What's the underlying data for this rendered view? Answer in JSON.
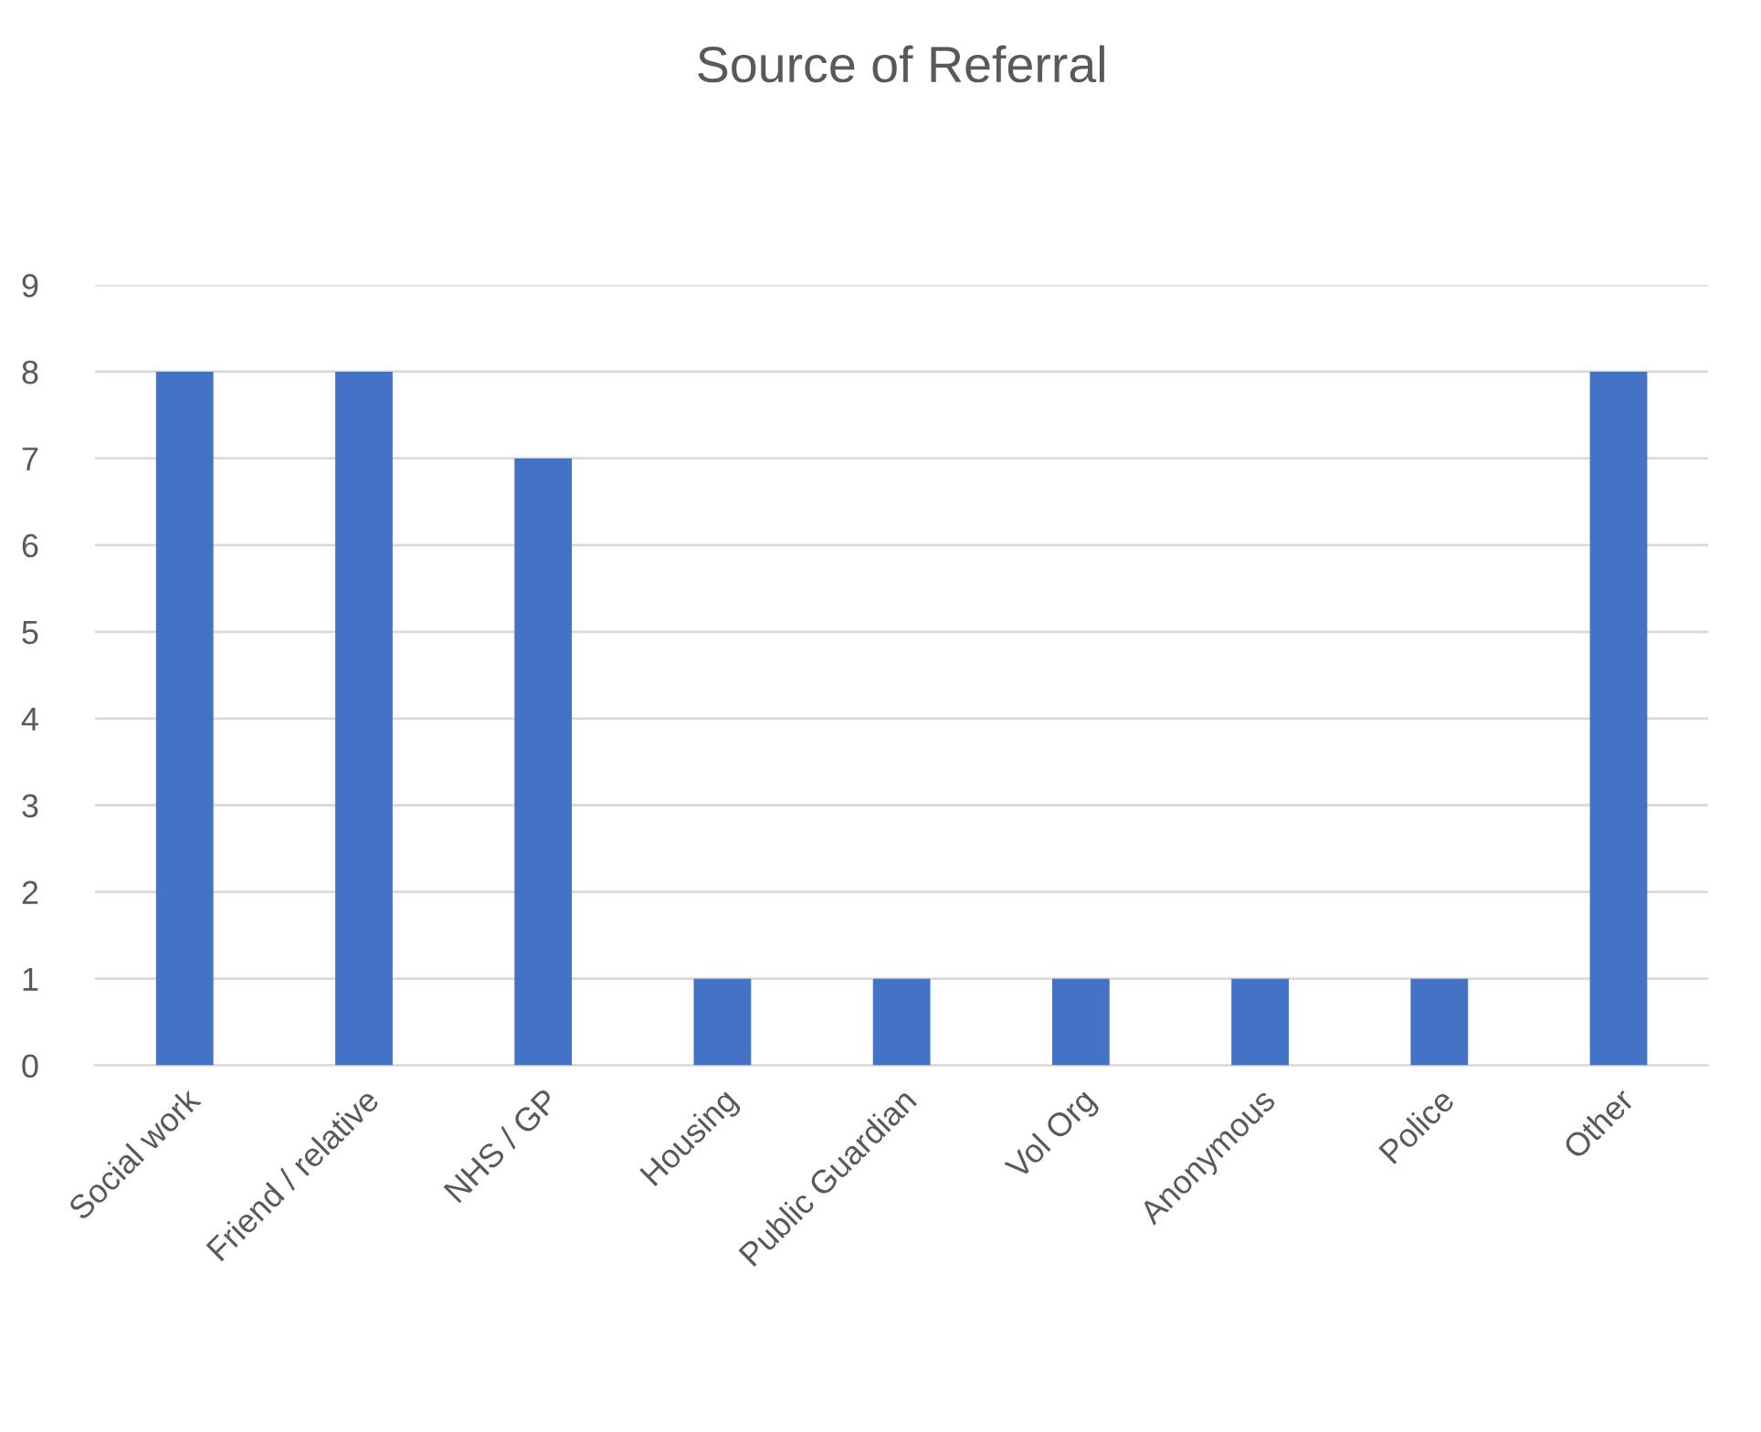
{
  "chart_data": {
    "type": "bar",
    "title": "Source of Referral",
    "categories": [
      "Social work",
      "Friend / relative",
      "NHS / GP",
      "Housing",
      "Public Guardian",
      "Vol Org",
      "Anonymous",
      "Police",
      "Other"
    ],
    "values": [
      8,
      8,
      7,
      1,
      1,
      1,
      1,
      1,
      8
    ],
    "color": "#4472c4",
    "ylim": [
      0,
      9
    ],
    "yticks": [
      0,
      1,
      2,
      3,
      4,
      5,
      6,
      7,
      8,
      9
    ],
    "grid": "y",
    "legend": false
  }
}
